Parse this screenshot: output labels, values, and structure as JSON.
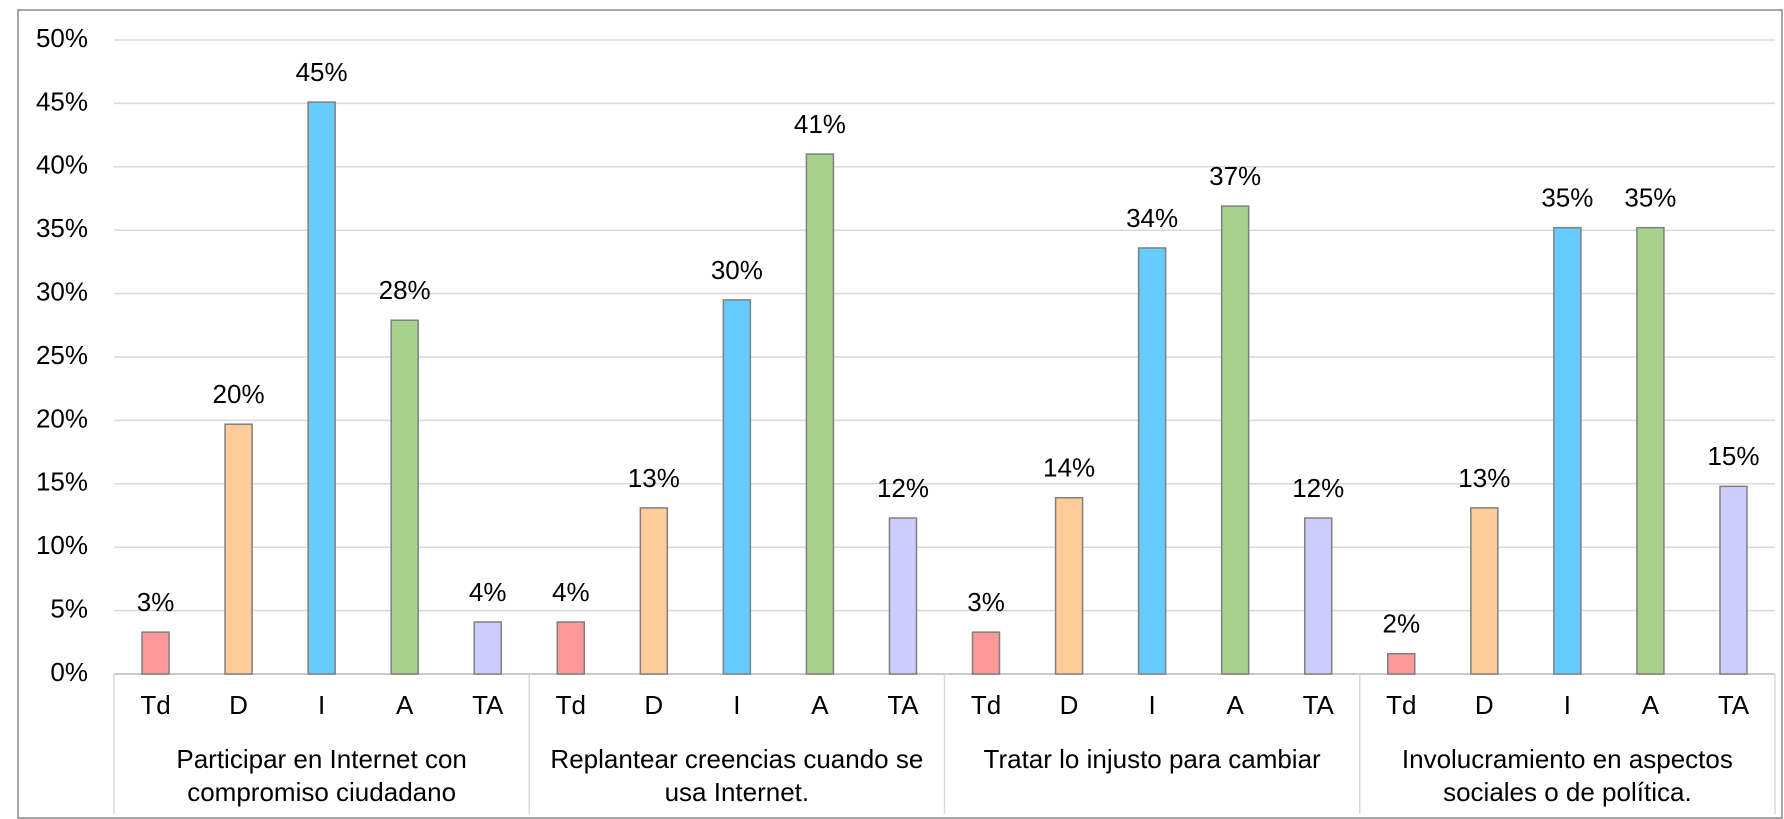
{
  "chart_data": {
    "type": "bar",
    "categories": [
      "Participar en Internet con compromiso ciudadano",
      "Replantear creencias cuando se usa Internet.",
      "Tratar lo injusto para cambiar",
      "Involucramiento en aspectos sociales o de política."
    ],
    "series": [
      {
        "name": "Td",
        "color": "#ff9999",
        "values": [
          3.3,
          4.1,
          3.3,
          1.6
        ],
        "value_labels": [
          "3%",
          "4%",
          "3%",
          "2%"
        ]
      },
      {
        "name": "D",
        "color": "#ffcc99",
        "values": [
          19.7,
          13.1,
          13.9,
          13.1
        ],
        "value_labels": [
          "20%",
          "13%",
          "14%",
          "13%"
        ]
      },
      {
        "name": "I",
        "color": "#66ccff",
        "values": [
          45.1,
          29.5,
          33.6,
          35.2
        ],
        "value_labels": [
          "45%",
          "30%",
          "34%",
          "35%"
        ]
      },
      {
        "name": "A",
        "color": "#a9d18e",
        "values": [
          27.9,
          41.0,
          36.9,
          35.2
        ],
        "value_labels": [
          "28%",
          "41%",
          "37%",
          "35%"
        ]
      },
      {
        "name": "TA",
        "color": "#ccccff",
        "values": [
          4.1,
          12.3,
          12.3,
          14.8
        ],
        "value_labels": [
          "4%",
          "12%",
          "12%",
          "15%"
        ]
      }
    ],
    "ylim": [
      0,
      50
    ],
    "yticks": [
      {
        "value": 0,
        "label": "0%"
      },
      {
        "value": 5,
        "label": "5%"
      },
      {
        "value": 10,
        "label": "10%"
      },
      {
        "value": 15,
        "label": "15%"
      },
      {
        "value": 20,
        "label": "20%"
      },
      {
        "value": 25,
        "label": "25%"
      },
      {
        "value": 30,
        "label": "30%"
      },
      {
        "value": 35,
        "label": "35%"
      },
      {
        "value": 40,
        "label": "40%"
      },
      {
        "value": 45,
        "label": "45%"
      },
      {
        "value": 50,
        "label": "50%"
      }
    ],
    "grid": true
  }
}
